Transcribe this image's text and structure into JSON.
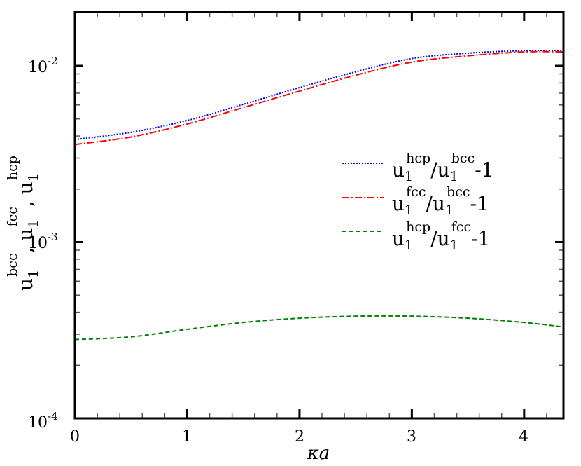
{
  "chart_data": {
    "type": "line",
    "title": "",
    "xlabel": "κa",
    "ylabel": "u1^bcc , u1^fcc , u1^hcp",
    "xlim": [
      0,
      4.35
    ],
    "ylim": [
      0.0001,
      0.02
    ],
    "yscale": "log",
    "grid": false,
    "legend_position": "center-right",
    "x_ticks": [
      0,
      1,
      2,
      3,
      4
    ],
    "y_ticks": [
      "10^-4",
      "10^-3",
      "10^-2"
    ],
    "x": [
      0,
      0.5,
      1,
      1.5,
      2,
      2.5,
      3,
      3.5,
      4,
      4.35
    ],
    "series": [
      {
        "name": "u1^hcp/u1^bcc-1",
        "color": "#0000ff",
        "style": "dotted",
        "values": [
          0.00382,
          0.0042,
          0.0049,
          0.00605,
          0.00753,
          0.00925,
          0.011,
          0.0118,
          0.0122,
          0.0122
        ]
      },
      {
        "name": "u1^fcc/u1^bcc-1",
        "color": "#ff0000",
        "style": "dash-dot",
        "values": [
          0.00358,
          0.00395,
          0.00468,
          0.0058,
          0.00719,
          0.00885,
          0.0105,
          0.0114,
          0.012,
          0.012
        ]
      },
      {
        "name": "u1^hcp/u1^fcc-1",
        "color": "#008000",
        "style": "dashed",
        "values": [
          0.00028,
          0.00029,
          0.00032,
          0.00035,
          0.00037,
          0.00038,
          0.00038,
          0.00037,
          0.00035,
          0.00033
        ]
      }
    ]
  },
  "axes": {
    "x_tick_labels": [
      "0",
      "1",
      "2",
      "3",
      "4"
    ],
    "y_tick_labels": [
      {
        "base": "10",
        "exp": "-2"
      },
      {
        "base": "10",
        "exp": "-3"
      },
      {
        "base": "10",
        "exp": "-4"
      }
    ],
    "xlabel": "κa",
    "ylabel_parts": [
      {
        "base": "u",
        "sub": "1",
        "sup": "bcc"
      },
      {
        "base": "u",
        "sub": "1",
        "sup": "fcc"
      },
      {
        "base": "u",
        "sub": "1",
        "sup": "hcp"
      }
    ]
  },
  "legend": {
    "items": [
      {
        "num_sup": "hcp",
        "den_sup": "bcc",
        "base": "u",
        "sub": "1",
        "suffix": "-1",
        "color": "#0000ff"
      },
      {
        "num_sup": "fcc",
        "den_sup": "bcc",
        "base": "u",
        "sub": "1",
        "suffix": "-1",
        "color": "#ff0000"
      },
      {
        "num_sup": "hcp",
        "den_sup": "fcc",
        "base": "u",
        "sub": "1",
        "suffix": "-1",
        "color": "#008000"
      }
    ]
  }
}
